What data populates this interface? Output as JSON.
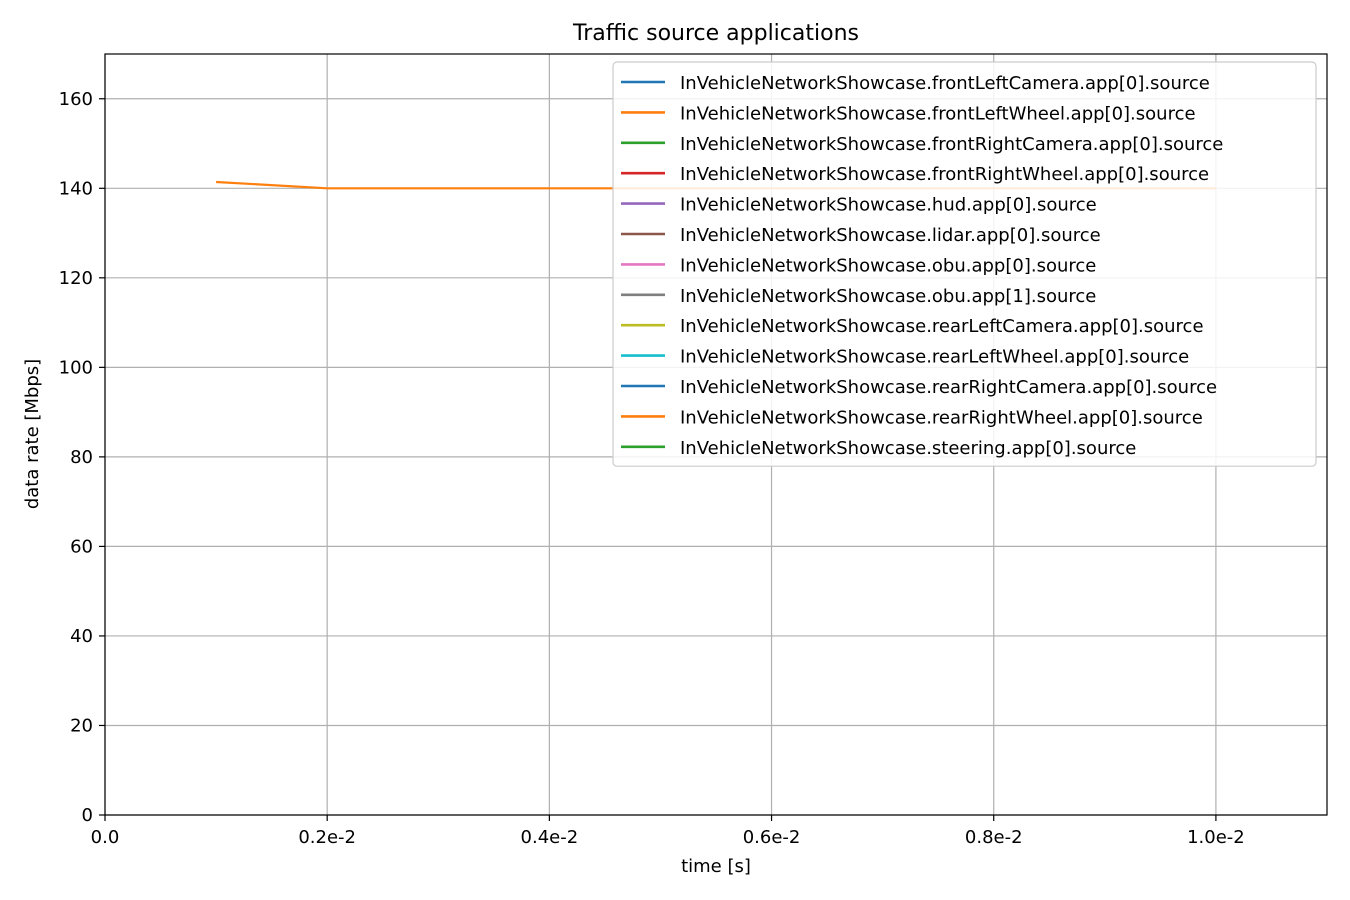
{
  "chart_data": {
    "type": "line",
    "title": "Traffic source applications",
    "xlabel": "time [s]",
    "ylabel": "data rate [Mbps]",
    "xlim": [
      0,
      0.011
    ],
    "ylim": [
      0,
      170
    ],
    "x_ticks": [
      {
        "value": 0,
        "label": "0.0"
      },
      {
        "value": 0.002,
        "label": "0.2e-2"
      },
      {
        "value": 0.004,
        "label": "0.4e-2"
      },
      {
        "value": 0.006,
        "label": "0.6e-2"
      },
      {
        "value": 0.008,
        "label": "0.8e-2"
      },
      {
        "value": 0.01,
        "label": "1.0e-2"
      }
    ],
    "y_ticks": [
      0,
      20,
      40,
      60,
      80,
      100,
      120,
      140,
      160
    ],
    "grid": true,
    "legend_position": "top-right",
    "series": [
      {
        "name": "InVehicleNetworkShowcase.frontLeftCamera.app[0].source",
        "color": "#1f77b4",
        "points": []
      },
      {
        "name": "InVehicleNetworkShowcase.frontLeftWheel.app[0].source",
        "color": "#ff7f0e",
        "points": []
      },
      {
        "name": "InVehicleNetworkShowcase.frontRightCamera.app[0].source",
        "color": "#2ca02c",
        "points": []
      },
      {
        "name": "InVehicleNetworkShowcase.frontRightWheel.app[0].source",
        "color": "#d62728",
        "points": []
      },
      {
        "name": "InVehicleNetworkShowcase.hud.app[0].source",
        "color": "#9467bd",
        "points": []
      },
      {
        "name": "InVehicleNetworkShowcase.lidar.app[0].source",
        "color": "#8c564b",
        "points": []
      },
      {
        "name": "InVehicleNetworkShowcase.obu.app[0].source",
        "color": "#e377c2",
        "points": []
      },
      {
        "name": "InVehicleNetworkShowcase.obu.app[1].source",
        "color": "#7f7f7f",
        "points": []
      },
      {
        "name": "InVehicleNetworkShowcase.rearLeftCamera.app[0].source",
        "color": "#bcbd22",
        "points": []
      },
      {
        "name": "InVehicleNetworkShowcase.rearLeftWheel.app[0].source",
        "color": "#17becf",
        "points": []
      },
      {
        "name": "InVehicleNetworkShowcase.rearRightCamera.app[0].source",
        "color": "#1f77b4",
        "points": []
      },
      {
        "name": "InVehicleNetworkShowcase.rearRightWheel.app[0].source",
        "color": "#ff7f0e",
        "points": [
          [
            0.001,
            141.4
          ],
          [
            0.002,
            140.0
          ],
          [
            0.003,
            140.0
          ],
          [
            0.004,
            140.0
          ],
          [
            0.005,
            140.0
          ],
          [
            0.006,
            140.0
          ],
          [
            0.007,
            140.0
          ],
          [
            0.008,
            140.0
          ],
          [
            0.009,
            140.0
          ],
          [
            0.01,
            140.0
          ]
        ]
      },
      {
        "name": "InVehicleNetworkShowcase.steering.app[0].source",
        "color": "#2ca02c",
        "points": []
      }
    ]
  }
}
